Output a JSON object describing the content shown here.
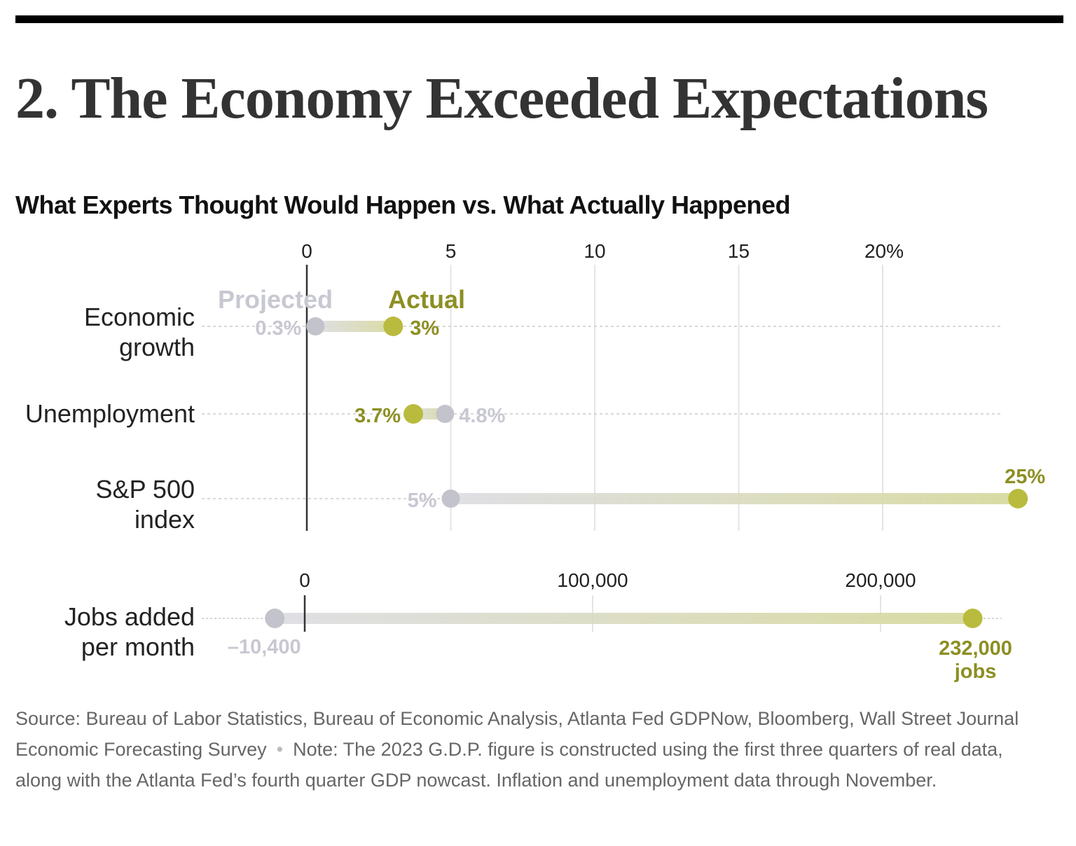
{
  "header": {
    "title": "2. The Economy Exceeded Expectations",
    "subtitle": "What Experts Thought Would Happen vs. What Actually Happened"
  },
  "colors": {
    "projected": "#c3c3cc",
    "projected_text": "#c8c8d2",
    "actual": "#b9bb3e",
    "actual_text": "#8c8f22"
  },
  "chart_data": [
    {
      "type": "dumbbell",
      "x_axis": {
        "ticks": [
          0,
          5,
          10,
          15,
          20
        ],
        "tick_labels": [
          "0",
          "5",
          "10",
          "15",
          "20%"
        ],
        "xlim": [
          0,
          25
        ]
      },
      "legend": {
        "projected": "Projected",
        "actual": "Actual"
      },
      "rows": [
        {
          "label": "Economic growth",
          "label_lines": [
            "Economic",
            "growth"
          ],
          "projected": 0.3,
          "actual": 3,
          "projected_label": "0.3%",
          "actual_label": "3%"
        },
        {
          "label": "Unemployment",
          "label_lines": [
            "Unemployment"
          ],
          "projected": 4.8,
          "actual": 3.7,
          "projected_label": "4.8%",
          "actual_label": "3.7%"
        },
        {
          "label": "S&P 500 index",
          "label_lines": [
            "S&P 500",
            "index"
          ],
          "projected": 5,
          "actual": 24.7,
          "projected_label": "5%",
          "actual_label": "25%"
        }
      ]
    },
    {
      "type": "dumbbell",
      "x_axis": {
        "ticks": [
          0,
          100000,
          200000
        ],
        "tick_labels": [
          "0",
          "100,000",
          "200,000"
        ]
      },
      "rows": [
        {
          "label": "Jobs added per month",
          "label_lines": [
            "Jobs added",
            "per month"
          ],
          "projected": -10400,
          "actual": 232000,
          "projected_label": "–10,400",
          "actual_label_lines": [
            "232,000",
            "jobs"
          ]
        }
      ]
    }
  ],
  "footer": {
    "source": "Source: Bureau of Labor Statistics, Bureau of Economic Analysis, Atlanta Fed GDPNow, Bloomberg, Wall Street Journal Economic Forecasting Survey",
    "separator": "•",
    "note": "Note: The 2023 G.D.P. figure is constructed using the first three quarters of real data, along with the Atlanta Fed’s fourth quarter GDP nowcast. Inflation and unemployment data through November."
  }
}
